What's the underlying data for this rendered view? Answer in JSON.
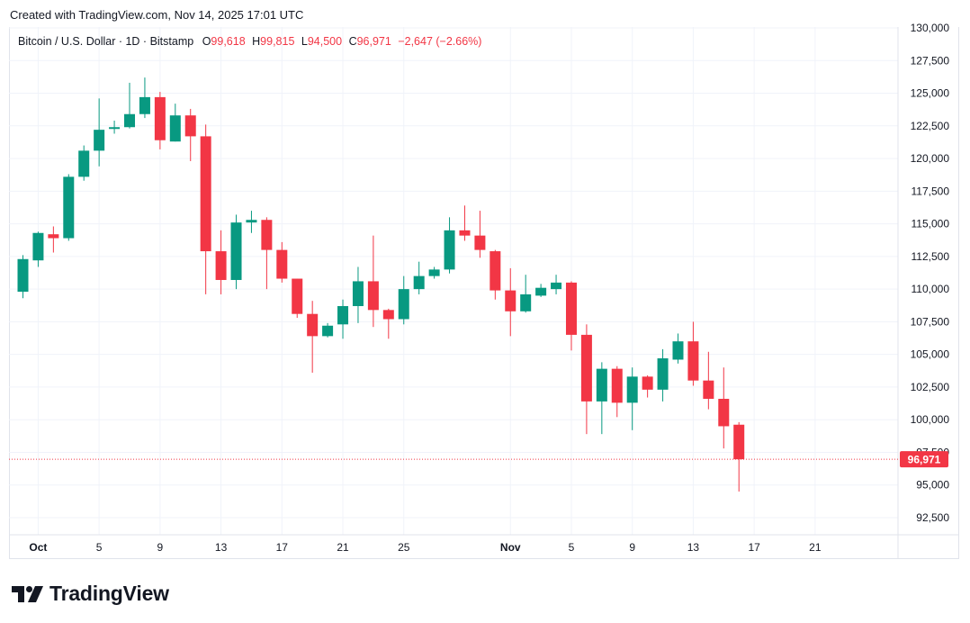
{
  "header": {
    "created_text": "Created with TradingView.com, Nov 14, 2025 17:01 UTC"
  },
  "legend": {
    "symbol": "Bitcoin / U.S. Dollar · 1D · Bitstamp",
    "open_label": "O",
    "open": "99,618",
    "high_label": "H",
    "high": "99,815",
    "low_label": "L",
    "low": "94,500",
    "close_label": "C",
    "close": "96,971",
    "change": "−2,647 (−2.66%)"
  },
  "logo": {
    "text": "TradingView",
    "icon": "tradingview-logo-icon"
  },
  "colors": {
    "up": "#089981",
    "down": "#f23645",
    "grid": "#f0f3fa",
    "axis_text": "#131722"
  },
  "chart_data": {
    "type": "candlestick",
    "title": "Bitcoin / U.S. Dollar · 1D · Bitstamp",
    "xlabel": "",
    "ylabel": "",
    "ylim": [
      90000,
      130000
    ],
    "y_ticks": [
      "92,500",
      "95,000",
      "97,500",
      "100,000",
      "102,500",
      "105,000",
      "107,500",
      "110,000",
      "112,500",
      "115,000",
      "117,500",
      "120,000",
      "122,500",
      "125,000",
      "127,500",
      "130,000"
    ],
    "x_ticks": [
      {
        "label": "Oct",
        "day": 1
      },
      {
        "label": "5",
        "day": 5
      },
      {
        "label": "9",
        "day": 9
      },
      {
        "label": "13",
        "day": 13
      },
      {
        "label": "17",
        "day": 17
      },
      {
        "label": "21",
        "day": 21
      },
      {
        "label": "25",
        "day": 25
      },
      {
        "label": "Nov",
        "day": 32
      },
      {
        "label": "5",
        "day": 36
      },
      {
        "label": "9",
        "day": 40
      },
      {
        "label": "13",
        "day": 44
      },
      {
        "label": "17",
        "day": 48
      },
      {
        "label": "21",
        "day": 52
      }
    ],
    "last_price": 96971,
    "last_price_label": "96,971",
    "candles": [
      {
        "day": 0,
        "o": 109800,
        "h": 112600,
        "l": 109300,
        "c": 112300
      },
      {
        "day": 1,
        "o": 112200,
        "h": 114400,
        "l": 111700,
        "c": 114300
      },
      {
        "day": 2,
        "o": 114200,
        "h": 114800,
        "l": 112800,
        "c": 113900
      },
      {
        "day": 3,
        "o": 113900,
        "h": 118800,
        "l": 113700,
        "c": 118600
      },
      {
        "day": 4,
        "o": 118600,
        "h": 121000,
        "l": 118300,
        "c": 120600
      },
      {
        "day": 5,
        "o": 120600,
        "h": 124600,
        "l": 119400,
        "c": 122200
      },
      {
        "day": 6,
        "o": 122300,
        "h": 122900,
        "l": 121900,
        "c": 122400
      },
      {
        "day": 7,
        "o": 122400,
        "h": 125800,
        "l": 122300,
        "c": 123400
      },
      {
        "day": 8,
        "o": 123400,
        "h": 126200,
        "l": 123100,
        "c": 124700
      },
      {
        "day": 9,
        "o": 124700,
        "h": 125100,
        "l": 120700,
        "c": 121400
      },
      {
        "day": 10,
        "o": 121300,
        "h": 124200,
        "l": 121300,
        "c": 123300
      },
      {
        "day": 11,
        "o": 123300,
        "h": 123800,
        "l": 119800,
        "c": 121700
      },
      {
        "day": 12,
        "o": 121700,
        "h": 122600,
        "l": 109600,
        "c": 112900
      },
      {
        "day": 13,
        "o": 112900,
        "h": 114500,
        "l": 109600,
        "c": 110700
      },
      {
        "day": 14,
        "o": 110700,
        "h": 115700,
        "l": 110000,
        "c": 115100
      },
      {
        "day": 15,
        "o": 115100,
        "h": 116000,
        "l": 114300,
        "c": 115300
      },
      {
        "day": 16,
        "o": 115300,
        "h": 115500,
        "l": 110000,
        "c": 113000
      },
      {
        "day": 17,
        "o": 113000,
        "h": 113600,
        "l": 110500,
        "c": 110800
      },
      {
        "day": 18,
        "o": 110800,
        "h": 110800,
        "l": 107800,
        "c": 108100
      },
      {
        "day": 19,
        "o": 108100,
        "h": 109100,
        "l": 103600,
        "c": 106400
      },
      {
        "day": 20,
        "o": 106400,
        "h": 107400,
        "l": 106300,
        "c": 107200
      },
      {
        "day": 21,
        "o": 107300,
        "h": 109200,
        "l": 106200,
        "c": 108700
      },
      {
        "day": 22,
        "o": 108700,
        "h": 111700,
        "l": 107400,
        "c": 110600
      },
      {
        "day": 23,
        "o": 110600,
        "h": 114100,
        "l": 107100,
        "c": 108400
      },
      {
        "day": 24,
        "o": 108400,
        "h": 108500,
        "l": 106200,
        "c": 107700
      },
      {
        "day": 25,
        "o": 107700,
        "h": 111000,
        "l": 107300,
        "c": 110000
      },
      {
        "day": 26,
        "o": 110000,
        "h": 112100,
        "l": 109600,
        "c": 111000
      },
      {
        "day": 27,
        "o": 111000,
        "h": 111700,
        "l": 110800,
        "c": 111500
      },
      {
        "day": 28,
        "o": 111500,
        "h": 115500,
        "l": 111200,
        "c": 114500
      },
      {
        "day": 29,
        "o": 114500,
        "h": 116400,
        "l": 113700,
        "c": 114100
      },
      {
        "day": 30,
        "o": 114100,
        "h": 116000,
        "l": 112400,
        "c": 113000
      },
      {
        "day": 31,
        "o": 112900,
        "h": 113000,
        "l": 109200,
        "c": 109900
      },
      {
        "day": 32,
        "o": 109900,
        "h": 111600,
        "l": 106400,
        "c": 108300
      },
      {
        "day": 33,
        "o": 108300,
        "h": 111100,
        "l": 108200,
        "c": 109600
      },
      {
        "day": 34,
        "o": 109500,
        "h": 110400,
        "l": 109400,
        "c": 110100
      },
      {
        "day": 35,
        "o": 110000,
        "h": 111100,
        "l": 109600,
        "c": 110500
      },
      {
        "day": 36,
        "o": 110500,
        "h": 110600,
        "l": 105300,
        "c": 106500
      },
      {
        "day": 37,
        "o": 106500,
        "h": 107300,
        "l": 98900,
        "c": 101400
      },
      {
        "day": 38,
        "o": 101400,
        "h": 104400,
        "l": 98900,
        "c": 103900
      },
      {
        "day": 39,
        "o": 103900,
        "h": 104100,
        "l": 100200,
        "c": 101300
      },
      {
        "day": 40,
        "o": 101300,
        "h": 104000,
        "l": 99200,
        "c": 103300
      },
      {
        "day": 41,
        "o": 103300,
        "h": 103400,
        "l": 101700,
        "c": 102300
      },
      {
        "day": 42,
        "o": 102300,
        "h": 105400,
        "l": 101400,
        "c": 104700
      },
      {
        "day": 43,
        "o": 104600,
        "h": 106600,
        "l": 104300,
        "c": 106000
      },
      {
        "day": 44,
        "o": 106000,
        "h": 107500,
        "l": 102600,
        "c": 103000
      },
      {
        "day": 45,
        "o": 103000,
        "h": 105200,
        "l": 100800,
        "c": 101600
      },
      {
        "day": 46,
        "o": 101600,
        "h": 104000,
        "l": 97800,
        "c": 99500
      },
      {
        "day": 47,
        "o": 99618,
        "h": 99815,
        "l": 94500,
        "c": 96971
      }
    ]
  }
}
